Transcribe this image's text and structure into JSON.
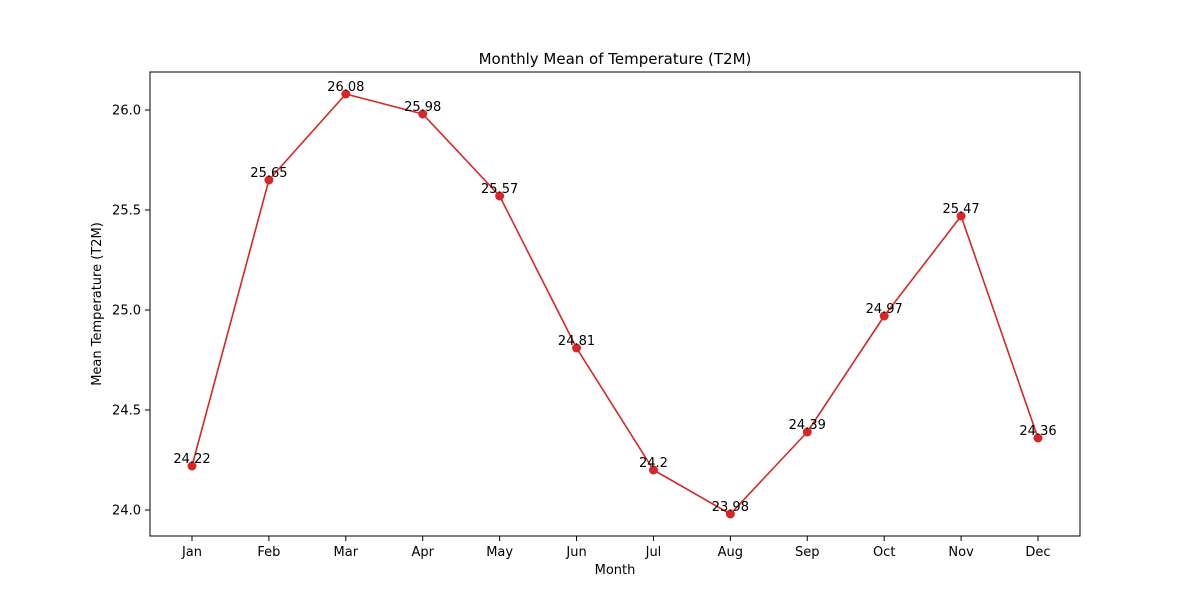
{
  "chart_data": {
    "type": "line",
    "title": "Monthly Mean of Temperature (T2M)",
    "xlabel": "Month",
    "ylabel": "Mean Temperature (T2M)",
    "categories": [
      "Jan",
      "Feb",
      "Mar",
      "Apr",
      "May",
      "Jun",
      "Jul",
      "Aug",
      "Sep",
      "Oct",
      "Nov",
      "Dec"
    ],
    "series": [
      {
        "values": [
          24.22,
          25.65,
          26.08,
          25.98,
          25.57,
          24.81,
          24.2,
          23.98,
          24.39,
          24.97,
          25.47,
          24.36
        ],
        "color": "#d62728"
      }
    ],
    "data_labels": [
      "24.22",
      "25.65",
      "26.08",
      "25.98",
      "25.57",
      "24.81",
      "24.2",
      "23.98",
      "24.39",
      "24.97",
      "25.47",
      "24.36"
    ],
    "ylim": [
      23.87,
      26.19
    ],
    "yticks": [
      24.0,
      24.5,
      25.0,
      25.5,
      26.0
    ],
    "ytick_labels": [
      "24.0",
      "24.5",
      "25.0",
      "25.5",
      "26.0"
    ],
    "grid": false,
    "legend": "none"
  }
}
